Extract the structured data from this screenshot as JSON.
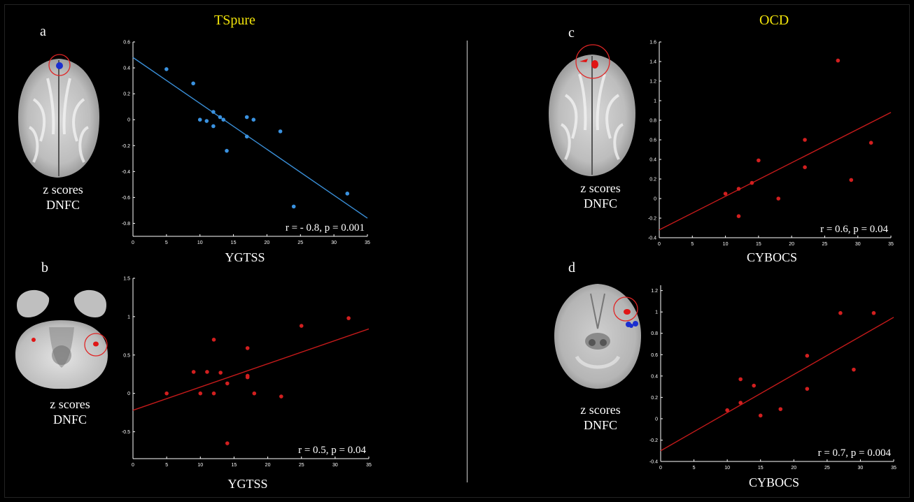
{
  "groups": {
    "left_title": "TSpure",
    "right_title": "OCD"
  },
  "panel_letters": {
    "a": "a",
    "b": "b",
    "c": "c",
    "d": "d"
  },
  "brain_labels": {
    "line1": "z scores",
    "line2": "DNFC"
  },
  "colors": {
    "title": "#f2e40a",
    "blue_series": "#3a92e0",
    "red_series": "#d21f1f",
    "fit_blue": "#3a8fd8",
    "fit_red": "#c41a1a",
    "roi_circle": "#e02525",
    "cluster_blue": "#1a2fd0",
    "cluster_red": "#e01515"
  },
  "chart_data": [
    {
      "panel": "a",
      "type": "scatter",
      "xlabel": "YGTSS",
      "ylabel": "",
      "xlim": [
        0,
        35
      ],
      "ylim": [
        -0.9,
        0.6
      ],
      "xticks": [
        0,
        5,
        10,
        15,
        20,
        25,
        30,
        35
      ],
      "yticks": [
        0.6,
        0.4,
        0.2,
        0,
        -0.2,
        -0.4,
        -0.6,
        -0.8
      ],
      "ytick_labels": [
        "0.6",
        "0.4",
        "0.2",
        "0",
        "-0.2",
        "-0.4",
        "-0.6",
        "-0.8"
      ],
      "points": [
        [
          5,
          0.39
        ],
        [
          9,
          0.28
        ],
        [
          10,
          0.0
        ],
        [
          11,
          -0.01
        ],
        [
          12,
          0.06
        ],
        [
          12,
          -0.05
        ],
        [
          13,
          0.02
        ],
        [
          13.5,
          0.0
        ],
        [
          14,
          -0.24
        ],
        [
          17,
          0.02
        ],
        [
          17,
          -0.13
        ],
        [
          18,
          0.0
        ],
        [
          22,
          -0.09
        ],
        [
          24,
          -0.67
        ],
        [
          32,
          -0.57
        ]
      ],
      "fit": [
        [
          0,
          0.48
        ],
        [
          35,
          -0.76
        ]
      ],
      "annotation": "r = - 0.8, p = 0.001",
      "color": "#3a92e0",
      "line_color": "#3a8fd8"
    },
    {
      "panel": "b",
      "type": "scatter",
      "xlabel": "YGTSS",
      "ylabel": "",
      "xlim": [
        0,
        35
      ],
      "ylim": [
        -0.85,
        1.5
      ],
      "xticks": [
        0,
        5,
        10,
        15,
        20,
        25,
        30,
        35
      ],
      "yticks": [
        1.5,
        1,
        0.5,
        0,
        -0.5
      ],
      "ytick_labels": [
        "1.5",
        "1",
        "0.5",
        "0",
        "-0.5"
      ],
      "points": [
        [
          5,
          0.0
        ],
        [
          9,
          0.28
        ],
        [
          10,
          0.0
        ],
        [
          11,
          0.28
        ],
        [
          12,
          0.7
        ],
        [
          12,
          0.0
        ],
        [
          13,
          0.27
        ],
        [
          14,
          0.13
        ],
        [
          14,
          -0.65
        ],
        [
          17,
          0.59
        ],
        [
          17,
          0.23
        ],
        [
          17,
          0.21
        ],
        [
          18,
          0.0
        ],
        [
          22,
          -0.04
        ],
        [
          25,
          0.88
        ],
        [
          32,
          0.98
        ]
      ],
      "fit": [
        [
          0,
          -0.22
        ],
        [
          35,
          0.84
        ]
      ],
      "annotation": "r = 0.5, p = 0.04",
      "color": "#d21f1f",
      "line_color": "#c41a1a"
    },
    {
      "panel": "c",
      "type": "scatter",
      "xlabel": "CYBOCS",
      "ylabel": "",
      "xlim": [
        0,
        35
      ],
      "ylim": [
        -0.4,
        1.6
      ],
      "xticks": [
        0,
        5,
        10,
        15,
        20,
        25,
        30,
        35
      ],
      "yticks": [
        1.6,
        1.4,
        1.2,
        1,
        0.8,
        0.6,
        0.4,
        0.2,
        0,
        -0.2,
        -0.4
      ],
      "ytick_labels": [
        "1.6",
        "1.4",
        "1.2",
        "1",
        "0.8",
        "0.6",
        "0.4",
        "0.2",
        "0",
        "-0.2",
        "-0.4"
      ],
      "points": [
        [
          10,
          0.05
        ],
        [
          12,
          0.1
        ],
        [
          12,
          -0.18
        ],
        [
          14,
          0.16
        ],
        [
          15,
          0.39
        ],
        [
          18,
          0.0
        ],
        [
          22,
          0.6
        ],
        [
          22,
          0.32
        ],
        [
          27,
          1.41
        ],
        [
          29,
          0.19
        ],
        [
          32,
          0.57
        ]
      ],
      "fit": [
        [
          0,
          -0.32
        ],
        [
          35,
          0.88
        ]
      ],
      "annotation": "r = 0.6, p = 0.04",
      "color": "#d21f1f",
      "line_color": "#c41a1a"
    },
    {
      "panel": "d",
      "type": "scatter",
      "xlabel": "CYBOCS",
      "ylabel": "",
      "xlim": [
        0,
        35
      ],
      "ylim": [
        -0.4,
        1.25
      ],
      "xticks": [
        0,
        5,
        10,
        15,
        20,
        25,
        30,
        35
      ],
      "yticks": [
        1.2,
        1,
        0.8,
        0.6,
        0.4,
        0.2,
        0,
        -0.2,
        -0.4
      ],
      "ytick_labels": [
        "1.2",
        "1",
        "0.8",
        "0.6",
        "0.4",
        "0.2",
        "0",
        "-0.2",
        "-0.4"
      ],
      "points": [
        [
          10,
          0.08
        ],
        [
          12,
          0.37
        ],
        [
          12,
          0.15
        ],
        [
          14,
          0.31
        ],
        [
          15,
          0.03
        ],
        [
          18,
          0.09
        ],
        [
          22,
          0.59
        ],
        [
          22,
          0.28
        ],
        [
          27,
          0.99
        ],
        [
          29,
          0.46
        ],
        [
          32,
          0.99
        ]
      ],
      "fit": [
        [
          0,
          -0.3
        ],
        [
          35,
          0.95
        ]
      ],
      "annotation": "r = 0.7, p = 0.004",
      "color": "#d21f1f",
      "line_color": "#c41a1a"
    }
  ]
}
